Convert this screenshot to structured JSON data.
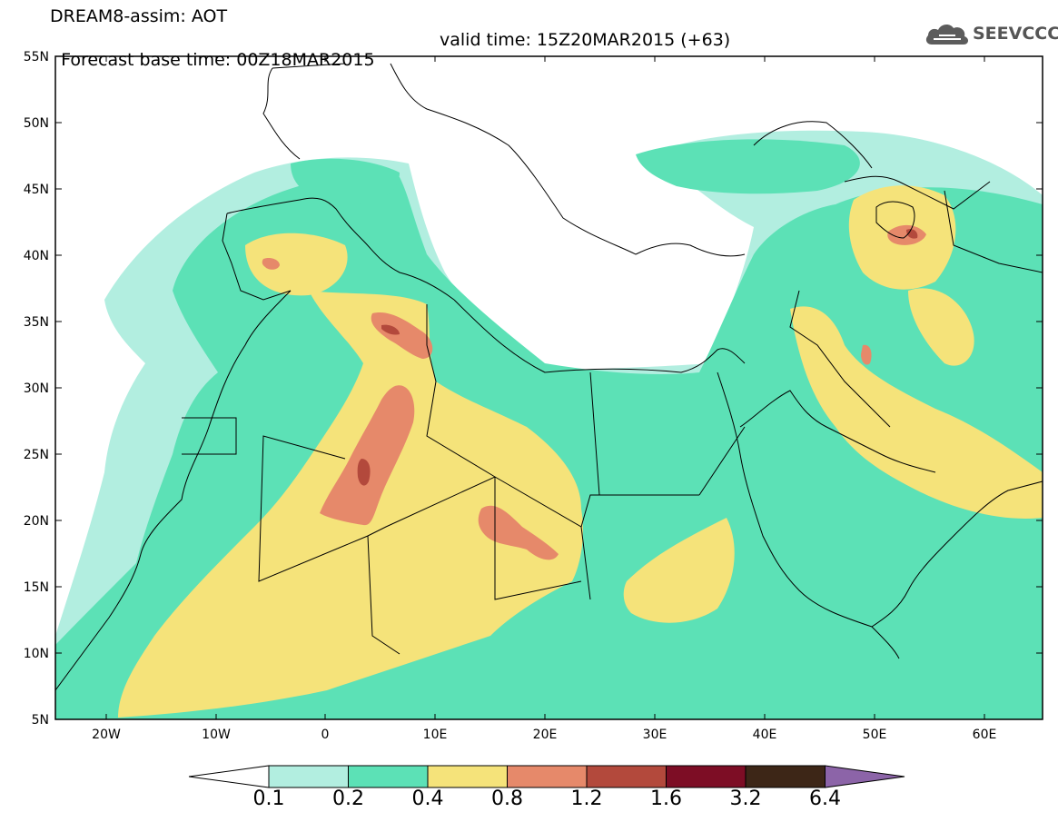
{
  "title": {
    "line1": "DREAM8-assim: AOT",
    "base_time": "Forecast base time: 00Z18MAR2015",
    "valid_time": "valid time: 15Z20MAR2015 (+63)"
  },
  "logo": {
    "text": "SEEVCCC",
    "icon": "cloud-icon"
  },
  "map": {
    "lon_range": [
      -25,
      65
    ],
    "lat_range": [
      5,
      55
    ],
    "lat_ticks": [
      "55N",
      "50N",
      "45N",
      "40N",
      "35N",
      "30N",
      "25N",
      "20N",
      "15N",
      "10N",
      "5N"
    ],
    "lon_ticks": [
      "20W",
      "10W",
      "0",
      "10E",
      "20E",
      "30E",
      "40E",
      "50E",
      "60E"
    ]
  },
  "colorbar": {
    "levels": [
      "0.1",
      "0.2",
      "0.4",
      "0.8",
      "1.2",
      "1.6",
      "3.2",
      "6.4"
    ],
    "colors": [
      "#b2eee0",
      "#5ce1b6",
      "#f5e37a",
      "#e6896a",
      "#b3493c",
      "#7d0d25",
      "#3d2617"
    ],
    "under_color": "#ffffff",
    "over_color": "#8c64a8"
  }
}
